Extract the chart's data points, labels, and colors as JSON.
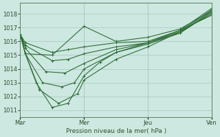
{
  "xlabel": "Pression niveau de la mer( hPa )",
  "bg_color": "#cce8e0",
  "grid_color": "#a8c8c0",
  "line_color": "#2d6b35",
  "ylim": [
    1010.5,
    1018.8
  ],
  "yticks": [
    1011,
    1012,
    1013,
    1014,
    1015,
    1016,
    1017,
    1018
  ],
  "day_labels": [
    "Mar",
    "Mer",
    "Jeu",
    "Ven"
  ],
  "day_positions": [
    0,
    1,
    2,
    3
  ],
  "series": [
    {
      "x": [
        0.0,
        0.08,
        0.5,
        1.0,
        1.5,
        2.0,
        2.5,
        3.0
      ],
      "y": [
        1016.5,
        1015.1,
        1015.0,
        1017.1,
        1016.0,
        1016.3,
        1016.9,
        1018.2
      ]
    },
    {
      "x": [
        0.0,
        0.08,
        0.25,
        0.5,
        0.75,
        1.0,
        1.25,
        1.5,
        2.0,
        2.5,
        3.0
      ],
      "y": [
        1016.5,
        1015.1,
        1013.0,
        1011.2,
        1011.5,
        1013.5,
        1014.5,
        1015.2,
        1015.9,
        1016.8,
        1018.4
      ]
    },
    {
      "x": [
        0.0,
        0.08,
        0.3,
        0.6,
        0.9,
        1.0,
        1.5,
        2.0,
        2.5,
        3.0
      ],
      "y": [
        1016.5,
        1015.1,
        1012.5,
        1011.5,
        1012.2,
        1013.2,
        1014.7,
        1015.6,
        1016.7,
        1018.3
      ]
    },
    {
      "x": [
        0.0,
        0.08,
        0.35,
        0.65,
        0.85,
        1.0,
        1.5,
        2.0,
        2.5,
        3.0
      ],
      "y": [
        1016.5,
        1015.1,
        1013.0,
        1012.7,
        1013.0,
        1014.0,
        1015.2,
        1015.8,
        1016.6,
        1018.2
      ]
    },
    {
      "x": [
        0.0,
        0.08,
        0.4,
        0.7,
        1.0,
        1.5,
        2.0,
        2.5,
        3.0
      ],
      "y": [
        1016.5,
        1015.5,
        1013.8,
        1013.7,
        1014.4,
        1015.4,
        1015.9,
        1016.6,
        1018.1
      ]
    },
    {
      "x": [
        0.0,
        0.08,
        0.5,
        0.75,
        1.0,
        1.5,
        2.0,
        2.5,
        3.0
      ],
      "y": [
        1016.5,
        1015.7,
        1014.6,
        1014.7,
        1015.1,
        1015.6,
        1015.9,
        1016.7,
        1018.0
      ]
    },
    {
      "x": [
        0.0,
        0.08,
        0.5,
        0.75,
        1.0,
        1.5,
        2.0,
        2.5,
        3.0
      ],
      "y": [
        1016.5,
        1015.9,
        1015.2,
        1015.4,
        1015.6,
        1015.9,
        1016.0,
        1016.8,
        1017.9
      ]
    }
  ]
}
